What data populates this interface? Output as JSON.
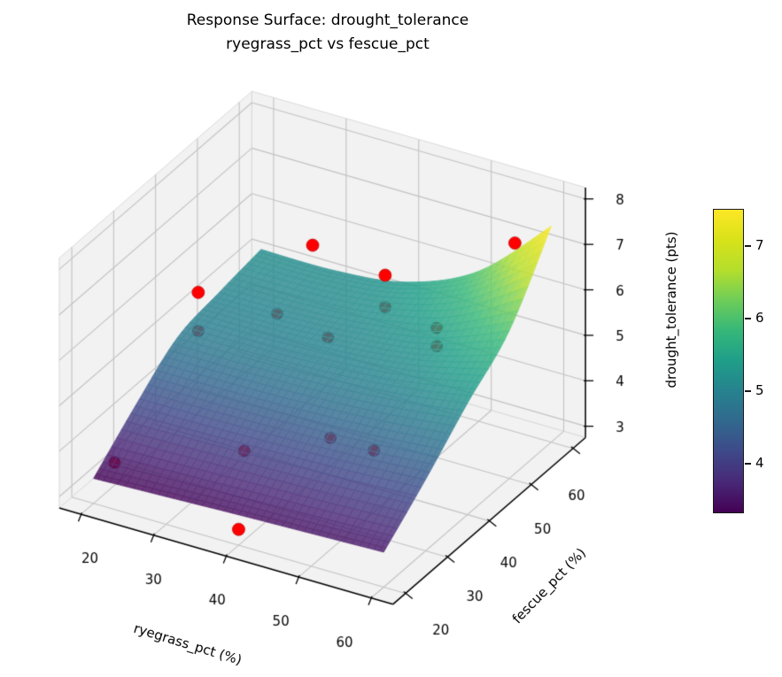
{
  "title": {
    "line1": "Response Surface: drought_tolerance",
    "line2": "ryegrass_pct vs fescue_pct"
  },
  "chart_data": {
    "type": "surface3d_scatter",
    "title": "Response Surface: drought_tolerance\nryegrass_pct vs fescue_pct",
    "xlabel": "ryegrass_pct (%)",
    "ylabel": "fescue_pct (%)",
    "zlabel": "drought_tolerance (pts)",
    "xlim": [
      17,
      63
    ],
    "ylim": [
      17,
      63
    ],
    "zlim": [
      2.75,
      8.25
    ],
    "xticks": [
      20,
      30,
      40,
      50,
      60
    ],
    "yticks": [
      20,
      30,
      40,
      50,
      60
    ],
    "zticks": [
      3,
      4,
      5,
      6,
      7,
      8
    ],
    "grid": true,
    "legend": "none",
    "surface": {
      "cmap": "viridis",
      "alpha": 0.8,
      "vmin": 3.3,
      "vmax": 7.5,
      "x": [
        20,
        30,
        40,
        50,
        60
      ],
      "y": [
        20,
        30,
        40,
        50,
        60
      ],
      "z": [
        [
          3.3,
          3.36,
          3.42,
          3.47,
          3.52
        ],
        [
          4.1,
          4.12,
          4.16,
          4.22,
          4.32
        ],
        [
          4.8,
          4.8,
          4.85,
          4.97,
          5.2
        ],
        [
          5.0,
          5.02,
          5.12,
          5.38,
          6.0
        ],
        [
          5.15,
          5.15,
          5.35,
          6.05,
          7.5
        ]
      ]
    },
    "scatter": {
      "color": "#ff0000",
      "edge_color": "#c40e0e",
      "marker_radius": 7,
      "points": [
        {
          "x": 30,
          "y": 55,
          "z": 6.1,
          "behind": false
        },
        {
          "x": 40,
          "y": 55,
          "z": 5.9,
          "behind": false
        },
        {
          "x": 55,
          "y": 60,
          "z": 6.9,
          "behind": false
        },
        {
          "x": 20,
          "y": 45,
          "z": 5.4,
          "behind": false
        },
        {
          "x": 40,
          "y": 20,
          "z": 3.1,
          "behind": false
        },
        {
          "x": 28,
          "y": 50,
          "z": 4.9,
          "behind": true
        },
        {
          "x": 20,
          "y": 45,
          "z": 4.55,
          "behind": true
        },
        {
          "x": 35,
          "y": 50,
          "z": 4.7,
          "behind": true
        },
        {
          "x": 40,
          "y": 55,
          "z": 5.2,
          "behind": true
        },
        {
          "x": 50,
          "y": 50,
          "z": 5.6,
          "behind": true
        },
        {
          "x": 50,
          "y": 50,
          "z": 5.2,
          "behind": true
        },
        {
          "x": 20,
          "y": 25,
          "z": 3.25,
          "behind": true
        },
        {
          "x": 35,
          "y": 30,
          "z": 3.8,
          "behind": true
        },
        {
          "x": 44,
          "y": 35,
          "z": 4.1,
          "behind": true
        },
        {
          "x": 50,
          "y": 35,
          "z": 4.1,
          "behind": true
        }
      ]
    },
    "colorbar": {
      "vmin": 3.3,
      "vmax": 7.5,
      "ticks": [
        4,
        5,
        6,
        7
      ]
    },
    "viridis_stops": [
      [
        0.0,
        "#440154"
      ],
      [
        0.1,
        "#482878"
      ],
      [
        0.2,
        "#3e4989"
      ],
      [
        0.3,
        "#31688e"
      ],
      [
        0.4,
        "#26828e"
      ],
      [
        0.5,
        "#1f9e89"
      ],
      [
        0.6,
        "#35b779"
      ],
      [
        0.7,
        "#6dcd59"
      ],
      [
        0.8,
        "#b4de2c"
      ],
      [
        0.9,
        "#d8e219"
      ],
      [
        1.0,
        "#fde725"
      ]
    ],
    "colors": {
      "pane": "#f2f2f2",
      "pane_edge": "#d9d9d9",
      "grid_line": "#c3c3c3",
      "axis_line": "#000000",
      "tick_text": "#000000",
      "mesh_line": "rgba(255,255,255,0.30)"
    }
  }
}
